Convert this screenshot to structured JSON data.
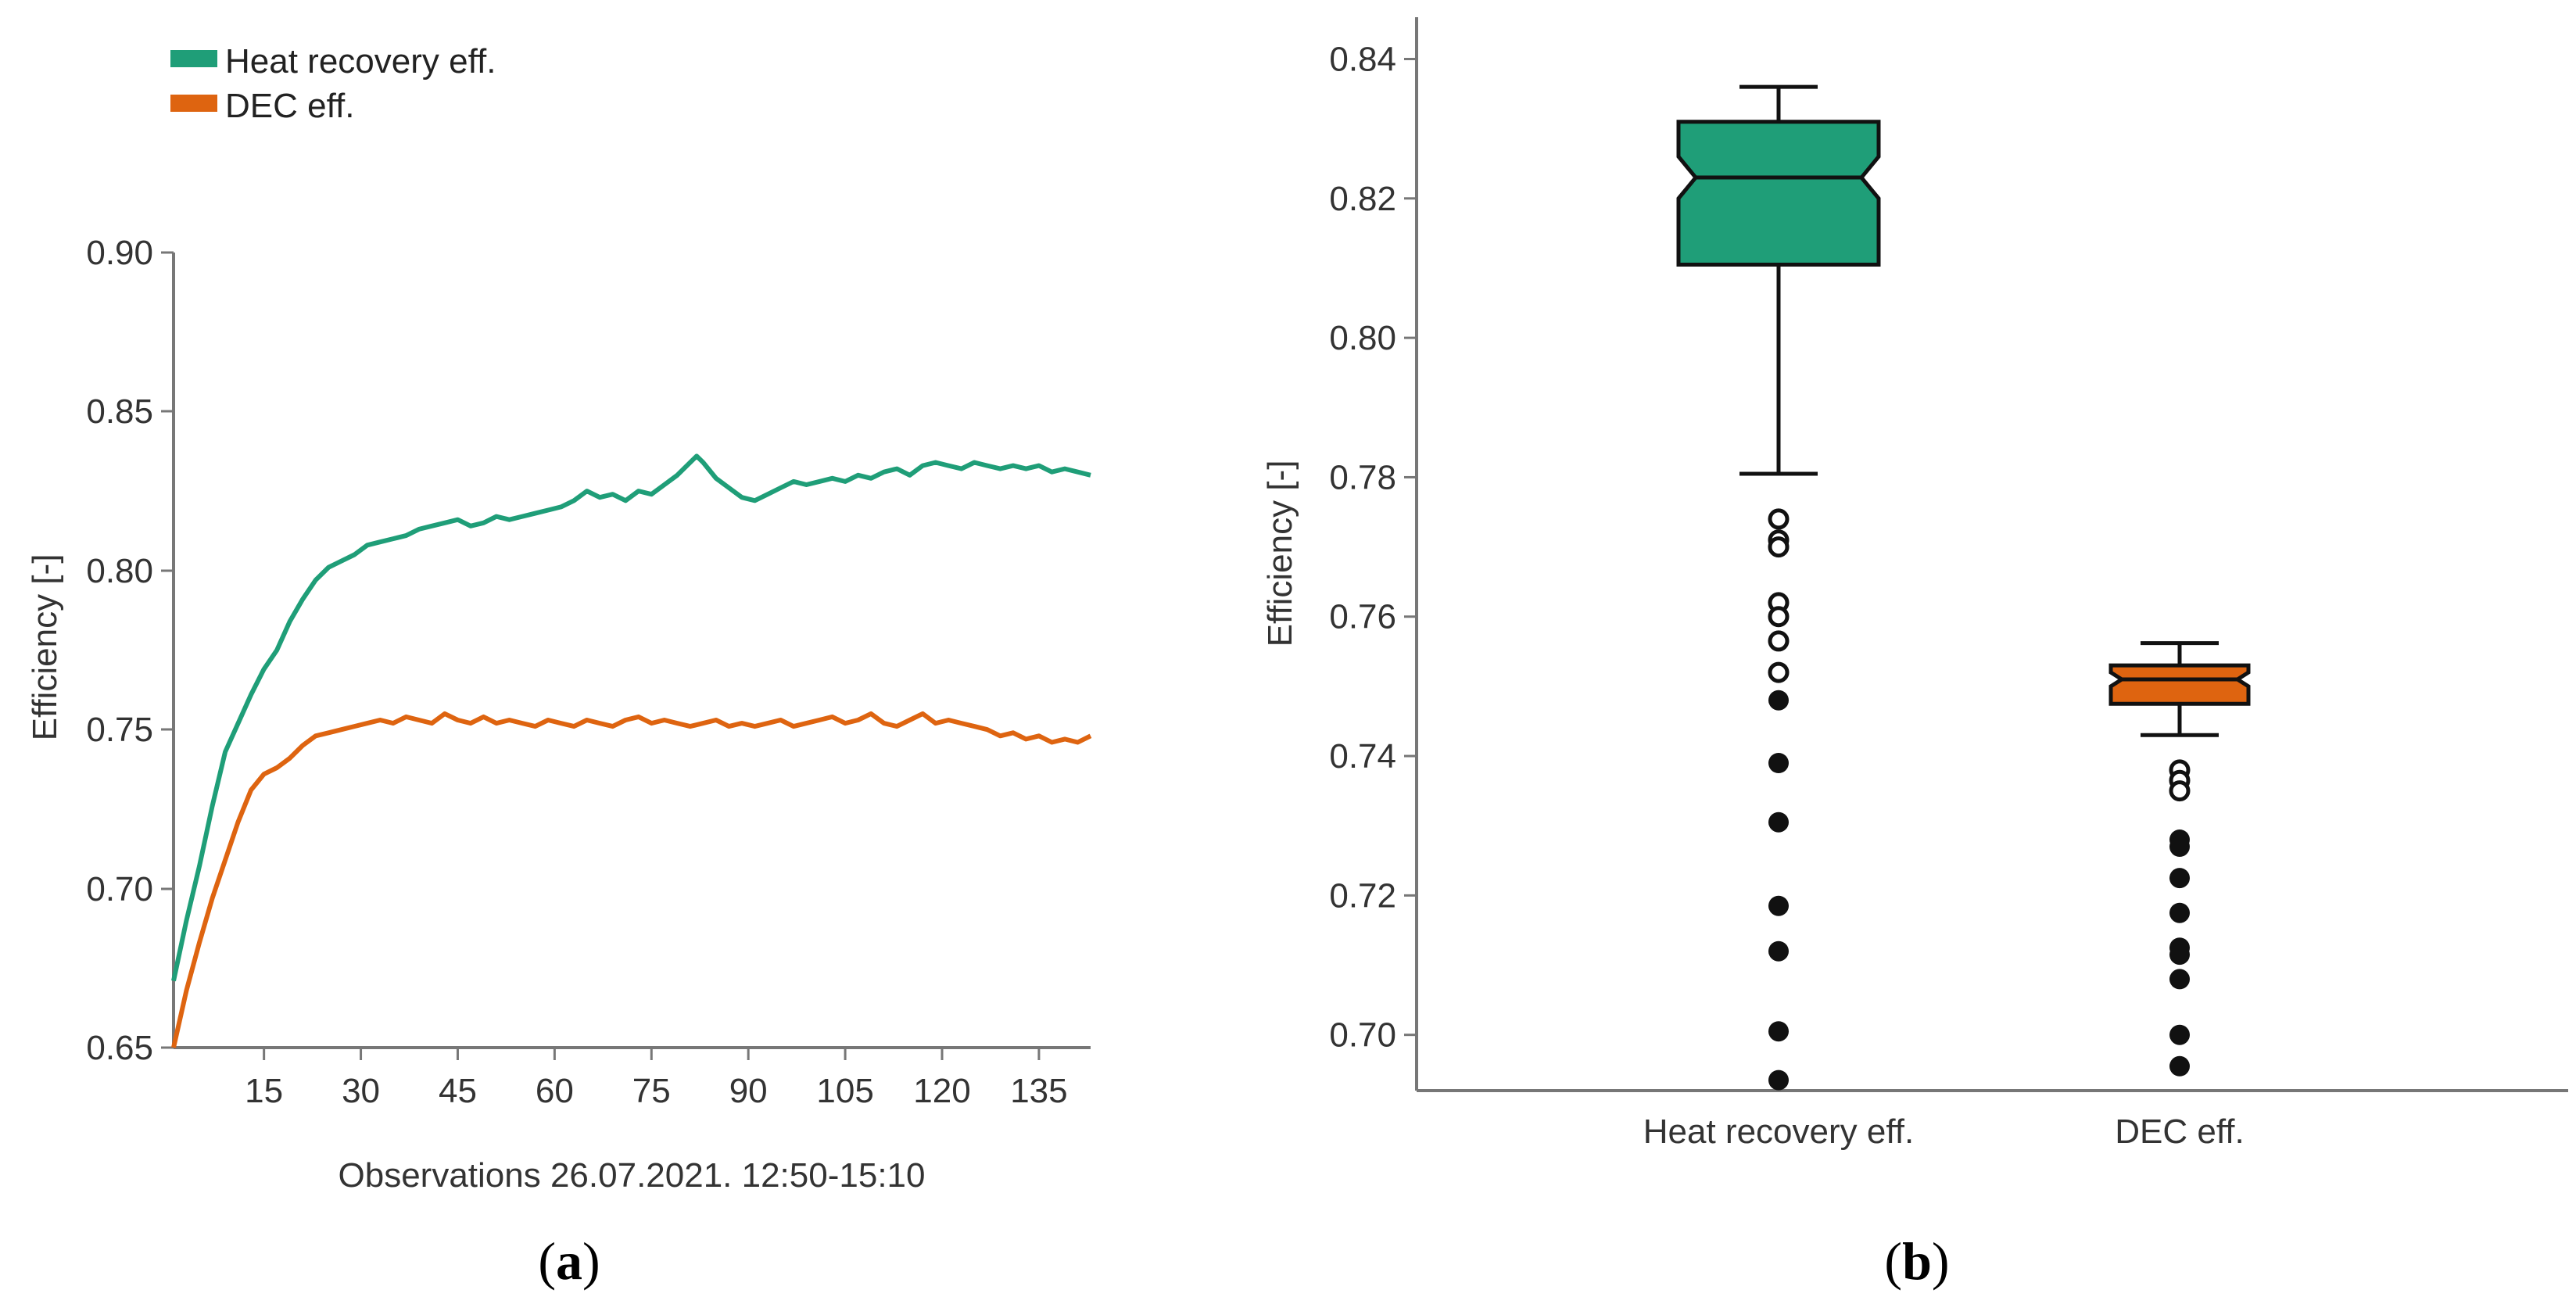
{
  "colors": {
    "heat_recovery": "#1f9e78",
    "dec": "#de6410",
    "axis": "#777777",
    "outlier": "#111111"
  },
  "panels": {
    "a": {
      "open": "(",
      "letter": "a",
      "close": ")"
    },
    "b": {
      "open": "(",
      "letter": "b",
      "close": ")"
    }
  },
  "chart_data": [
    {
      "type": "line",
      "panel": "a",
      "title": "",
      "xlabel": "Observations 26.07.2021. 12:50-15:10",
      "ylabel": "Efficiency [-]",
      "xlim": [
        1,
        143
      ],
      "ylim": [
        0.65,
        0.9
      ],
      "x_ticks": [
        15,
        30,
        45,
        60,
        75,
        90,
        105,
        120,
        135
      ],
      "y_ticks": [
        0.65,
        0.7,
        0.75,
        0.8,
        0.85,
        0.9
      ],
      "y_tick_labels": [
        "0.65",
        "0.70",
        "0.75",
        "0.80",
        "0.85",
        "0.90"
      ],
      "legend": {
        "placement": "top-left outside",
        "entries": [
          "Heat recovery eff.",
          "DEC eff."
        ]
      },
      "series": [
        {
          "name": "Heat recovery eff.",
          "color_key": "heat_recovery",
          "points": [
            [
              1,
              0.671
            ],
            [
              3,
              0.69
            ],
            [
              5,
              0.707
            ],
            [
              7,
              0.726
            ],
            [
              9,
              0.743
            ],
            [
              11,
              0.752
            ],
            [
              13,
              0.761
            ],
            [
              15,
              0.769
            ],
            [
              17,
              0.775
            ],
            [
              19,
              0.784
            ],
            [
              21,
              0.791
            ],
            [
              23,
              0.797
            ],
            [
              25,
              0.801
            ],
            [
              27,
              0.803
            ],
            [
              29,
              0.805
            ],
            [
              31,
              0.808
            ],
            [
              33,
              0.809
            ],
            [
              35,
              0.81
            ],
            [
              37,
              0.811
            ],
            [
              39,
              0.813
            ],
            [
              41,
              0.814
            ],
            [
              43,
              0.815
            ],
            [
              45,
              0.816
            ],
            [
              47,
              0.814
            ],
            [
              49,
              0.815
            ],
            [
              51,
              0.817
            ],
            [
              53,
              0.816
            ],
            [
              55,
              0.817
            ],
            [
              57,
              0.818
            ],
            [
              59,
              0.819
            ],
            [
              61,
              0.82
            ],
            [
              63,
              0.822
            ],
            [
              65,
              0.825
            ],
            [
              67,
              0.823
            ],
            [
              69,
              0.824
            ],
            [
              71,
              0.822
            ],
            [
              73,
              0.825
            ],
            [
              75,
              0.824
            ],
            [
              77,
              0.827
            ],
            [
              79,
              0.83
            ],
            [
              81,
              0.834
            ],
            [
              82,
              0.836
            ],
            [
              83,
              0.834
            ],
            [
              85,
              0.829
            ],
            [
              87,
              0.826
            ],
            [
              89,
              0.823
            ],
            [
              91,
              0.822
            ],
            [
              93,
              0.824
            ],
            [
              95,
              0.826
            ],
            [
              97,
              0.828
            ],
            [
              99,
              0.827
            ],
            [
              101,
              0.828
            ],
            [
              103,
              0.829
            ],
            [
              105,
              0.828
            ],
            [
              107,
              0.83
            ],
            [
              109,
              0.829
            ],
            [
              111,
              0.831
            ],
            [
              113,
              0.832
            ],
            [
              115,
              0.83
            ],
            [
              117,
              0.833
            ],
            [
              119,
              0.834
            ],
            [
              121,
              0.833
            ],
            [
              123,
              0.832
            ],
            [
              125,
              0.834
            ],
            [
              127,
              0.833
            ],
            [
              129,
              0.832
            ],
            [
              131,
              0.833
            ],
            [
              133,
              0.832
            ],
            [
              135,
              0.833
            ],
            [
              137,
              0.831
            ],
            [
              139,
              0.832
            ],
            [
              141,
              0.831
            ],
            [
              143,
              0.83
            ]
          ]
        },
        {
          "name": "DEC eff.",
          "color_key": "dec",
          "points": [
            [
              1,
              0.65
            ],
            [
              3,
              0.668
            ],
            [
              5,
              0.683
            ],
            [
              7,
              0.697
            ],
            [
              9,
              0.709
            ],
            [
              11,
              0.721
            ],
            [
              13,
              0.731
            ],
            [
              15,
              0.736
            ],
            [
              17,
              0.738
            ],
            [
              19,
              0.741
            ],
            [
              21,
              0.745
            ],
            [
              23,
              0.748
            ],
            [
              25,
              0.749
            ],
            [
              27,
              0.75
            ],
            [
              29,
              0.751
            ],
            [
              31,
              0.752
            ],
            [
              33,
              0.753
            ],
            [
              35,
              0.752
            ],
            [
              37,
              0.754
            ],
            [
              39,
              0.753
            ],
            [
              41,
              0.752
            ],
            [
              43,
              0.755
            ],
            [
              45,
              0.753
            ],
            [
              47,
              0.752
            ],
            [
              49,
              0.754
            ],
            [
              51,
              0.752
            ],
            [
              53,
              0.753
            ],
            [
              55,
              0.752
            ],
            [
              57,
              0.751
            ],
            [
              59,
              0.753
            ],
            [
              61,
              0.752
            ],
            [
              63,
              0.751
            ],
            [
              65,
              0.753
            ],
            [
              67,
              0.752
            ],
            [
              69,
              0.751
            ],
            [
              71,
              0.753
            ],
            [
              73,
              0.754
            ],
            [
              75,
              0.752
            ],
            [
              77,
              0.753
            ],
            [
              79,
              0.752
            ],
            [
              81,
              0.751
            ],
            [
              83,
              0.752
            ],
            [
              85,
              0.753
            ],
            [
              87,
              0.751
            ],
            [
              89,
              0.752
            ],
            [
              91,
              0.751
            ],
            [
              93,
              0.752
            ],
            [
              95,
              0.753
            ],
            [
              97,
              0.751
            ],
            [
              99,
              0.752
            ],
            [
              101,
              0.753
            ],
            [
              103,
              0.754
            ],
            [
              105,
              0.752
            ],
            [
              107,
              0.753
            ],
            [
              109,
              0.755
            ],
            [
              111,
              0.752
            ],
            [
              113,
              0.751
            ],
            [
              115,
              0.753
            ],
            [
              117,
              0.755
            ],
            [
              119,
              0.752
            ],
            [
              121,
              0.753
            ],
            [
              123,
              0.752
            ],
            [
              125,
              0.751
            ],
            [
              127,
              0.75
            ],
            [
              129,
              0.748
            ],
            [
              131,
              0.749
            ],
            [
              133,
              0.747
            ],
            [
              135,
              0.748
            ],
            [
              137,
              0.746
            ],
            [
              139,
              0.747
            ],
            [
              141,
              0.746
            ],
            [
              143,
              0.748
            ]
          ]
        }
      ]
    },
    {
      "type": "box",
      "panel": "b",
      "title": "",
      "xlabel": "",
      "ylabel": "Efficiency [-]",
      "ylim": [
        0.692,
        0.846
      ],
      "y_ticks": [
        0.7,
        0.72,
        0.74,
        0.76,
        0.78,
        0.8,
        0.82,
        0.84
      ],
      "y_tick_labels": [
        "0.70",
        "0.72",
        "0.74",
        "0.76",
        "0.78",
        "0.80",
        "0.82",
        "0.84"
      ],
      "categories": [
        "Heat recovery eff.",
        "DEC eff."
      ],
      "boxes": [
        {
          "name": "Heat recovery eff.",
          "color_key": "heat_recovery",
          "whisker_low": 0.7805,
          "q1": 0.8105,
          "median": 0.823,
          "q3": 0.831,
          "whisker_high": 0.836,
          "notch_low": 0.82,
          "notch_high": 0.826,
          "outliers_open": [
            0.774,
            0.771,
            0.77,
            0.762,
            0.76,
            0.7565,
            0.752
          ],
          "outliers_filled": [
            0.748,
            0.739,
            0.7305,
            0.7185,
            0.712,
            0.7005,
            0.6935
          ]
        },
        {
          "name": "DEC eff.",
          "color_key": "dec",
          "whisker_low": 0.743,
          "q1": 0.7475,
          "median": 0.751,
          "q3": 0.753,
          "whisker_high": 0.7562,
          "notch_low": 0.75,
          "notch_high": 0.752,
          "outliers_open": [
            0.738,
            0.7365,
            0.735
          ],
          "outliers_filled": [
            0.728,
            0.727,
            0.7225,
            0.7175,
            0.7125,
            0.7115,
            0.708,
            0.7,
            0.6955
          ]
        }
      ]
    }
  ]
}
